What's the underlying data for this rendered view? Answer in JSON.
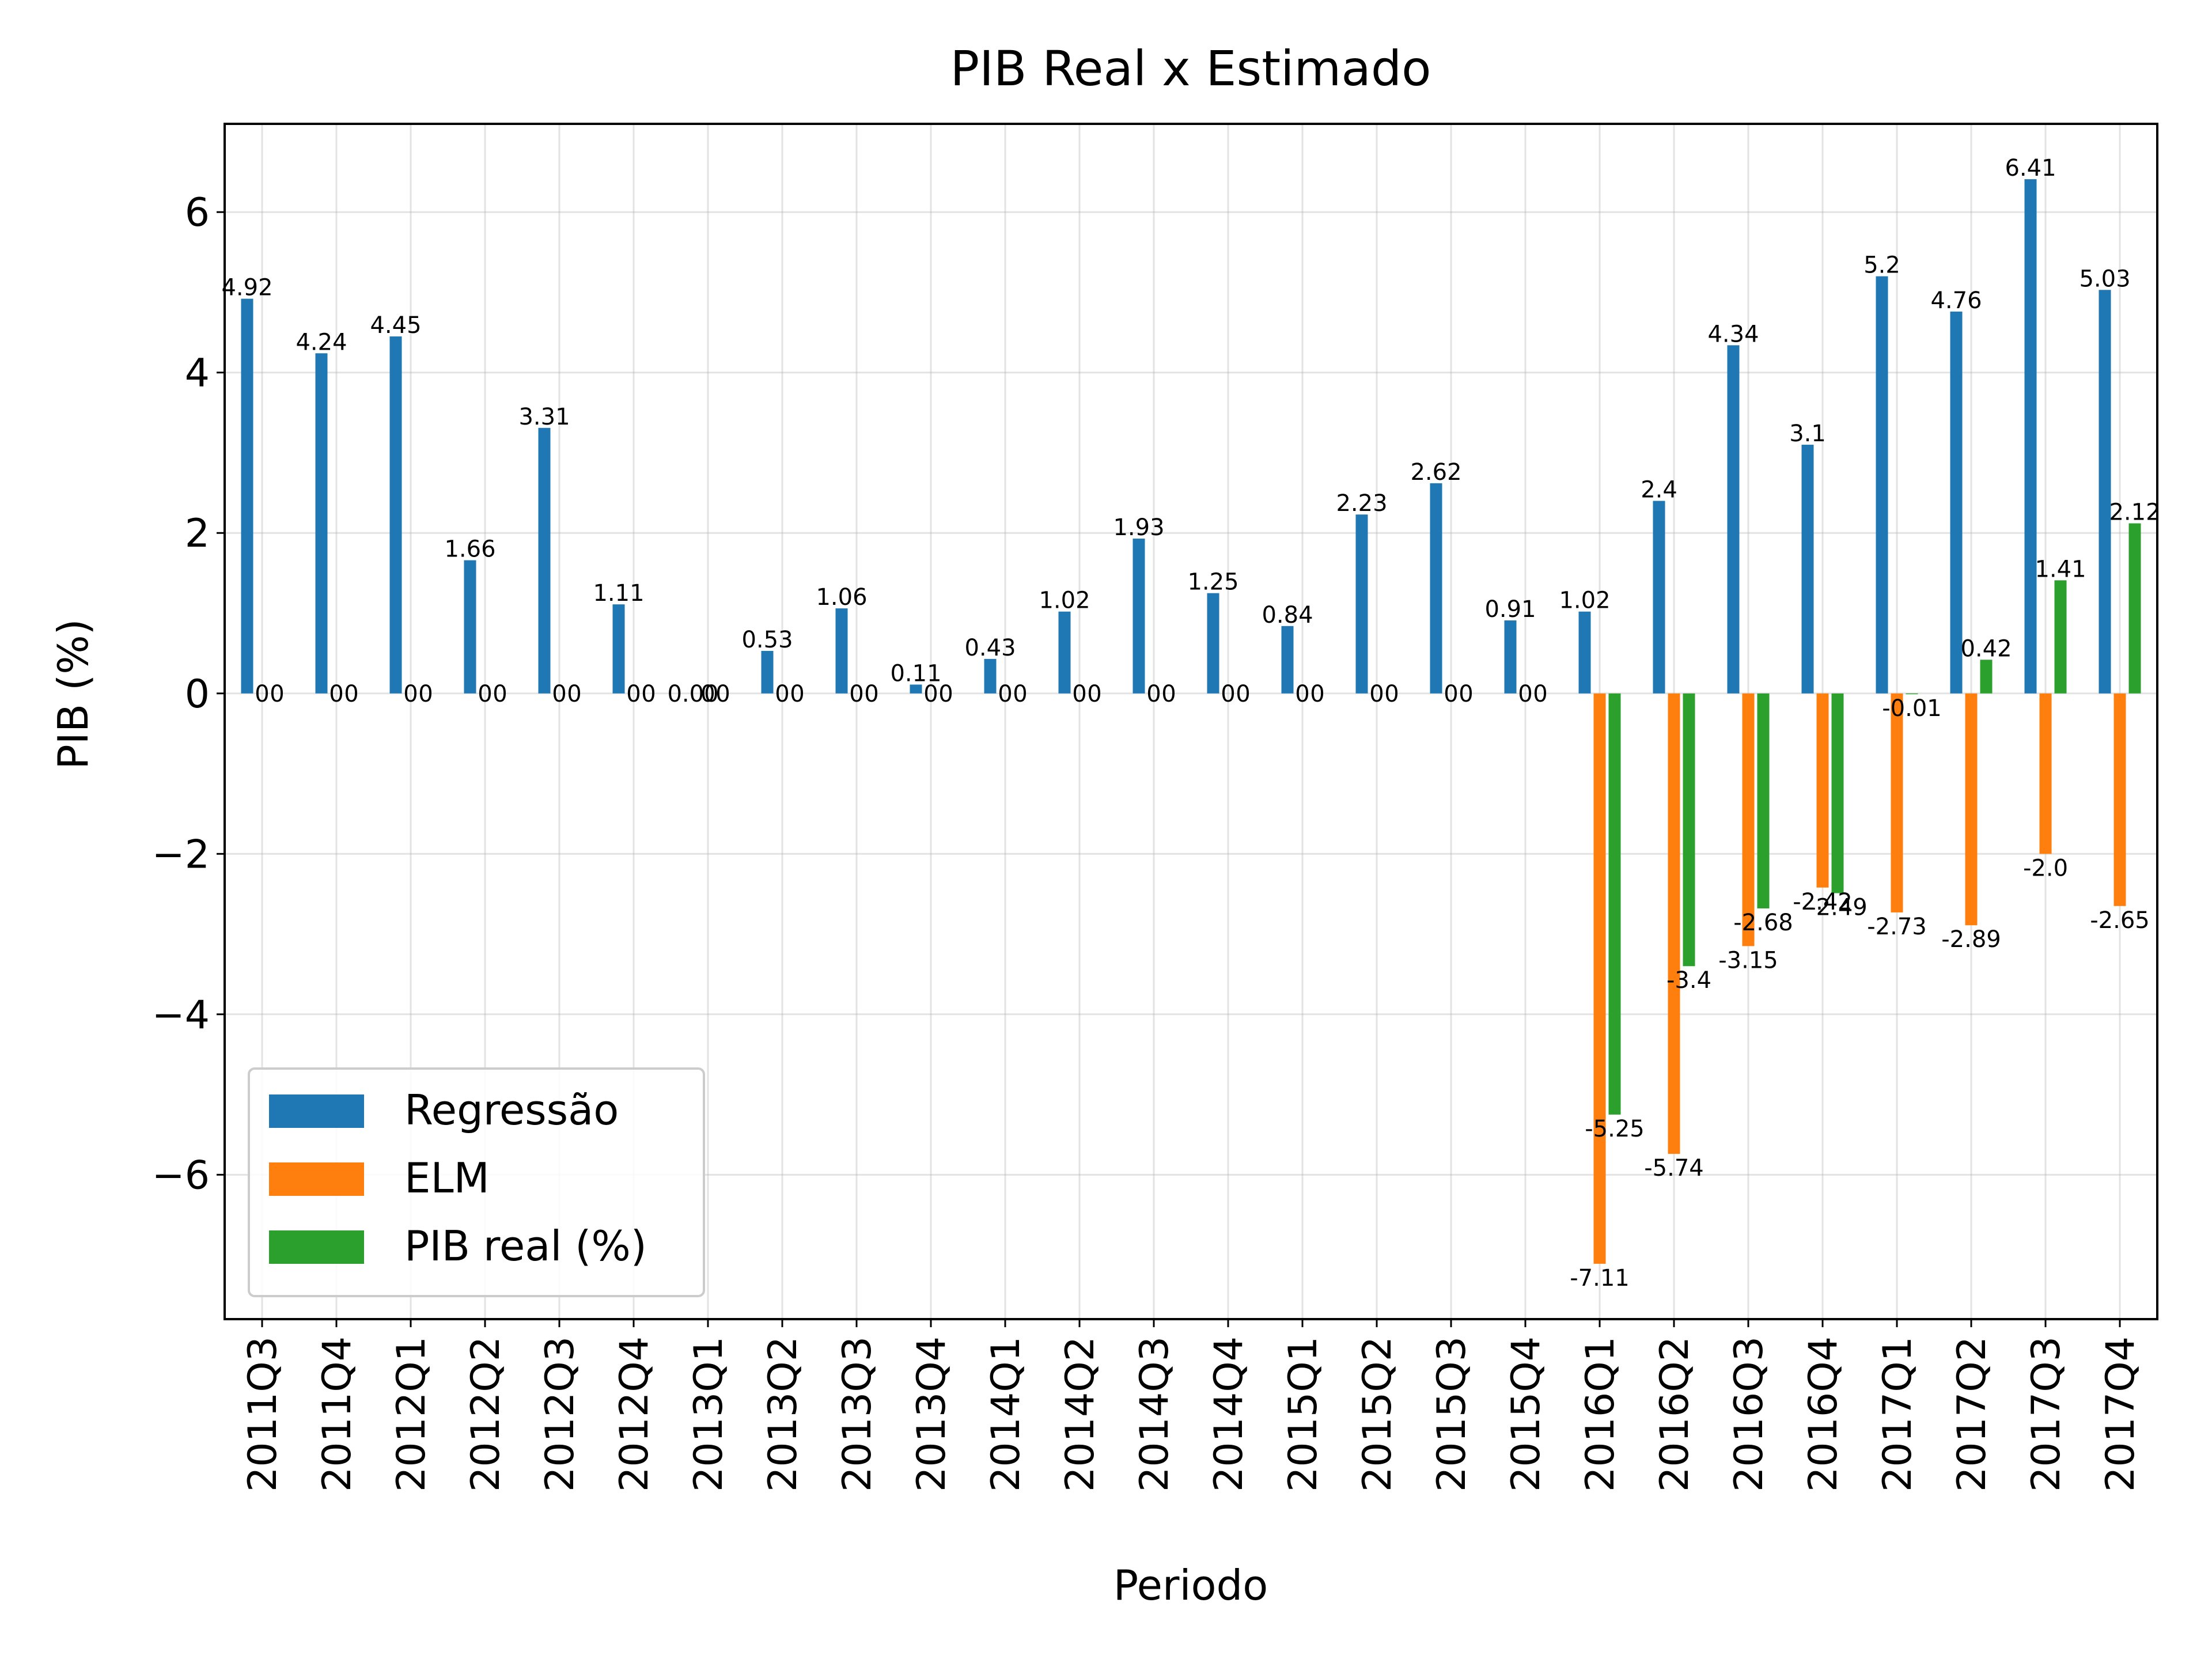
{
  "chart_data": {
    "type": "bar",
    "title": "PIB Real x Estimado",
    "xlabel": "Periodo",
    "ylabel": "PIB (%)",
    "ylim": [
      -7.8,
      7.1
    ],
    "yticks": [
      -6,
      -4,
      -2,
      0,
      2,
      4,
      6
    ],
    "ytick_labels": [
      "−6",
      "−4",
      "−2",
      "0",
      "2",
      "4",
      "6"
    ],
    "grid": true,
    "legend_position": "bottom-left",
    "categories": [
      "2011Q3",
      "2011Q4",
      "2012Q1",
      "2012Q2",
      "2012Q3",
      "2012Q4",
      "2013Q1",
      "2013Q2",
      "2013Q3",
      "2013Q4",
      "2014Q1",
      "2014Q2",
      "2014Q3",
      "2014Q4",
      "2015Q1",
      "2015Q2",
      "2015Q3",
      "2015Q4",
      "2016Q1",
      "2016Q2",
      "2016Q3",
      "2016Q4",
      "2017Q1",
      "2017Q2",
      "2017Q3",
      "2017Q4"
    ],
    "series": [
      {
        "name": "Regressão",
        "color": "#1f77b4",
        "values": [
          4.92,
          4.24,
          4.45,
          1.66,
          3.31,
          1.11,
          0.0,
          0.53,
          1.06,
          0.11,
          0.43,
          1.02,
          1.93,
          1.25,
          0.84,
          2.23,
          2.62,
          0.91,
          1.02,
          2.4,
          4.34,
          3.1,
          5.2,
          4.76,
          6.41,
          5.03
        ],
        "labels": [
          "4.92",
          "4.24",
          "4.45",
          "1.66",
          "3.31",
          "1.11",
          "0.00",
          "0.53",
          "1.06",
          "0.11",
          "0.43",
          "1.02",
          "1.93",
          "1.25",
          "0.84",
          "2.23",
          "2.62",
          "0.91",
          "1.02",
          "2.4",
          "4.34",
          "3.1",
          "5.2",
          "4.76",
          "6.41",
          "5.03"
        ]
      },
      {
        "name": "ELM",
        "color": "#ff7f0e",
        "values": [
          0,
          0,
          0,
          0,
          0,
          0,
          0,
          0,
          0,
          0,
          0,
          0,
          0,
          0,
          0,
          0,
          0,
          0,
          -7.11,
          -5.74,
          -3.15,
          -2.42,
          -2.73,
          -2.89,
          -2.0,
          -2.65
        ],
        "labels": [
          "0",
          "0",
          "0",
          "0",
          "0",
          "0",
          "0",
          "0",
          "0",
          "0",
          "0",
          "0",
          "0",
          "0",
          "0",
          "0",
          "0",
          "0",
          "-7.11",
          "-5.74",
          "-3.15",
          "-2.42",
          "-2.73",
          "-2.89",
          "-2.0",
          "-2.65"
        ]
      },
      {
        "name": "PIB real (%)",
        "color": "#2ca02c",
        "values": [
          0,
          0,
          0,
          0,
          0,
          0,
          0,
          0,
          0,
          0,
          0,
          0,
          0,
          0,
          0,
          0,
          0,
          0,
          -5.25,
          -3.4,
          -2.68,
          -2.49,
          -0.01,
          0.42,
          1.41,
          2.12
        ],
        "labels": [
          "0",
          "0",
          "0",
          "0",
          "0",
          "0",
          "0",
          "0",
          "0",
          "0",
          "0",
          "0",
          "0",
          "0",
          "0",
          "0",
          "0",
          "0",
          "-5.25",
          "-3.4",
          "-2.68",
          "-2.49",
          "-0.01",
          "0.42",
          "1.41",
          "2.12"
        ]
      }
    ]
  }
}
